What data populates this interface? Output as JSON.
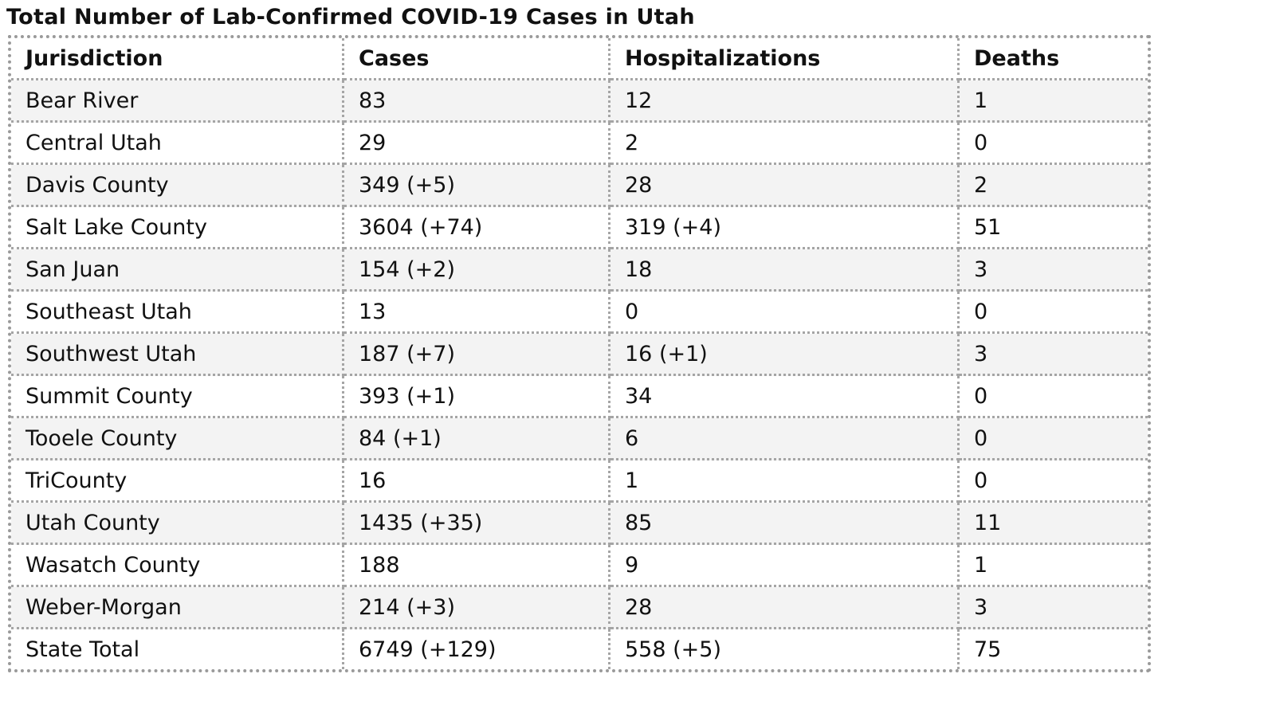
{
  "header": {
    "title": "Total Number of Lab-Confirmed COVID-19 Cases in Utah"
  },
  "table": {
    "columns": [
      "Jurisdiction",
      "Cases",
      "Hospitalizations",
      "Deaths"
    ],
    "rows": [
      [
        "Bear River",
        "83",
        "12",
        "1"
      ],
      [
        "Central Utah",
        "29",
        "2",
        "0"
      ],
      [
        "Davis County",
        "349 (+5)",
        "28",
        "2"
      ],
      [
        "Salt Lake County",
        "3604 (+74)",
        "319 (+4)",
        "51"
      ],
      [
        "San Juan",
        "154 (+2)",
        "18",
        "3"
      ],
      [
        "Southeast Utah",
        "13",
        "0",
        "0"
      ],
      [
        "Southwest Utah",
        "187 (+7)",
        "16 (+1)",
        "3"
      ],
      [
        "Summit County",
        "393 (+1)",
        "34",
        "0"
      ],
      [
        "Tooele County",
        "84 (+1)",
        "6",
        "0"
      ],
      [
        "TriCounty",
        "16",
        "1",
        "0"
      ],
      [
        "Utah County",
        "1435 (+35)",
        "85",
        "11"
      ],
      [
        "Wasatch County",
        "188",
        "9",
        "1"
      ],
      [
        "Weber-Morgan",
        "214 (+3)",
        "28",
        "3"
      ],
      [
        "State Total",
        "6749 (+129)",
        "558 (+5)",
        "75"
      ]
    ]
  }
}
